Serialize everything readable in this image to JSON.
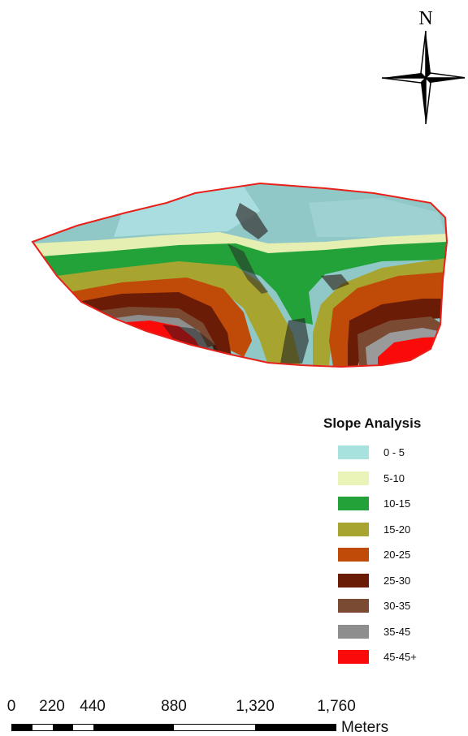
{
  "north_arrow": {
    "label": "N"
  },
  "legend": {
    "title": "Slope Analysis",
    "classes": [
      {
        "label": "0 - 5",
        "color": "#a8e2de"
      },
      {
        "label": "5-10",
        "color": "#eaf3b8"
      },
      {
        "label": "10-15",
        "color": "#22a239"
      },
      {
        "label": "15-20",
        "color": "#a7a530"
      },
      {
        "label": "20-25",
        "color": "#c04a08"
      },
      {
        "label": "25-30",
        "color": "#6a1c06"
      },
      {
        "label": "30-35",
        "color": "#7b4a32"
      },
      {
        "label": "35-45",
        "color": "#8e8e8e"
      },
      {
        "label": "45-45+",
        "color": "#fb0a0a"
      }
    ]
  },
  "scale_bar": {
    "ticks": [
      "0",
      "220",
      "440",
      "880",
      "1,320",
      "1,760"
    ],
    "tick_values_m": [
      0,
      220,
      440,
      880,
      1320,
      1760
    ],
    "units": "Meters"
  },
  "map": {
    "outline_color": "#e8201a"
  }
}
